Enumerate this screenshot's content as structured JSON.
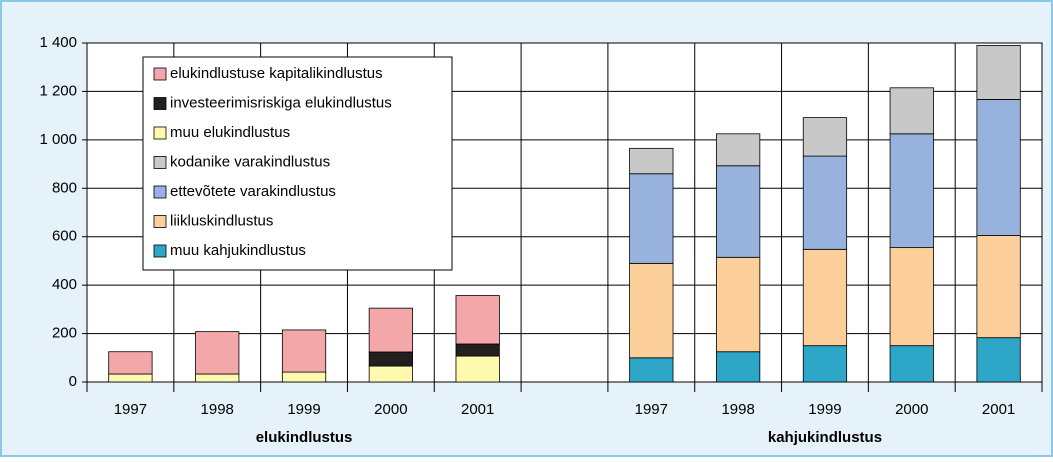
{
  "chart_data": {
    "type": "stacked_bar",
    "categories": [
      "1997",
      "1998",
      "1999",
      "2000",
      "2001",
      null,
      "1997",
      "1998",
      "1999",
      "2000",
      "2001"
    ],
    "group_labels": [
      "elukindlustus",
      "kahjukindlustus"
    ],
    "series": [
      {
        "name": "muu kahjukindlustus",
        "color": "#2ea6c8",
        "values": [
          null,
          null,
          null,
          null,
          null,
          null,
          100,
          125,
          150,
          150,
          183
        ]
      },
      {
        "name": "liikluskindlustus",
        "color": "#fccf9b",
        "values": [
          null,
          null,
          null,
          null,
          null,
          null,
          390,
          390,
          398,
          405,
          422
        ]
      },
      {
        "name": "ettevõtete varakindlustus",
        "color": "#97b3dd",
        "values": [
          null,
          null,
          null,
          null,
          null,
          null,
          370,
          378,
          385,
          470,
          562
        ]
      },
      {
        "name": "kodanike varakindlustus",
        "color": "#c8c8c8",
        "values": [
          null,
          null,
          null,
          null,
          null,
          null,
          105,
          132,
          159,
          190,
          223
        ]
      },
      {
        "name": "muu elukindlustus",
        "color": "#fff9b0",
        "values": [
          33,
          33,
          41,
          66,
          107,
          null,
          null,
          null,
          null,
          null,
          null
        ]
      },
      {
        "name": "investeerimisriskiga elukindlustus",
        "color": "#231f20",
        "values": [
          0,
          0,
          0,
          58,
          50,
          null,
          null,
          null,
          null,
          null,
          null
        ]
      },
      {
        "name": "elukindlustuse kapitalikindlustus",
        "color": "#f4a7a9",
        "values": [
          92,
          175,
          174,
          181,
          200,
          null,
          null,
          null,
          null,
          null,
          null
        ]
      }
    ],
    "ylim": [
      0,
      1400
    ],
    "yticks": [
      0,
      200,
      400,
      600,
      800,
      {
        "value": 1000,
        "label": "1 000"
      },
      {
        "value": 1200,
        "label": "1 200"
      },
      {
        "value": 1400,
        "label": "1 400"
      }
    ],
    "grid": true
  }
}
